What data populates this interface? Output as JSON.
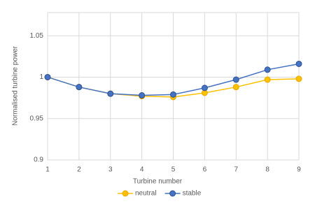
{
  "chart_data": {
    "type": "line",
    "x_label": "Turbine number",
    "y_label": "Normalised turbine power",
    "x": [
      1,
      2,
      3,
      4,
      5,
      6,
      7,
      8,
      9
    ],
    "series": [
      {
        "name": "neutral",
        "color": "#FFC000",
        "values": [
          1.0,
          0.988,
          0.98,
          0.977,
          0.976,
          0.981,
          0.988,
          0.997,
          0.998
        ]
      },
      {
        "name": "stable",
        "color": "#4472C4",
        "values": [
          1.0,
          0.988,
          0.98,
          0.978,
          0.979,
          0.987,
          0.997,
          1.009,
          1.016
        ]
      }
    ],
    "xlim": [
      1,
      9
    ],
    "xticks": [
      1,
      2,
      3,
      4,
      5,
      6,
      7,
      8,
      9
    ],
    "ylim": [
      0.9,
      1.078
    ],
    "yticks": [
      0.9,
      0.95,
      1,
      1.05
    ],
    "grid": true,
    "legend": "bottom"
  }
}
